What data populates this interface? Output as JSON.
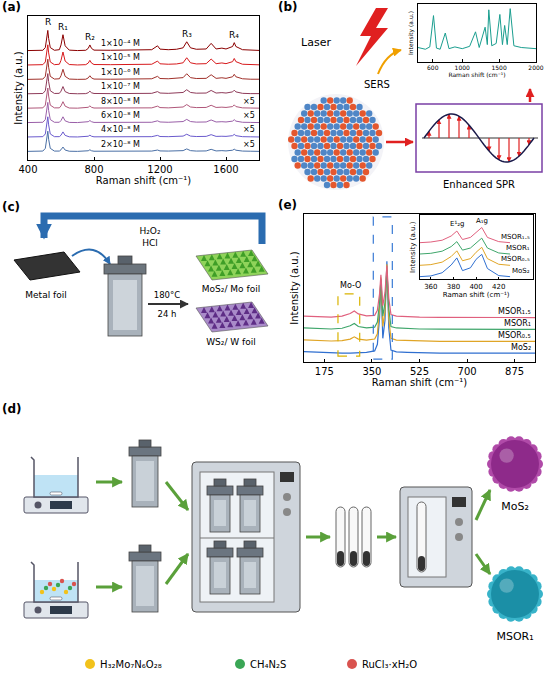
{
  "chart_data": [
    {
      "panel": "(a)",
      "type": "line",
      "grid": false,
      "tick_labels": "x",
      "x_label": "Raman shift (cm⁻¹)",
      "y_label": "Intensity (a.u.)",
      "xlim": [
        400,
        1800
      ],
      "xticks": [
        400,
        800,
        1200,
        1600
      ],
      "ylim": [
        0,
        10
      ],
      "yticks": [],
      "x": [
        400,
        450,
        490,
        505,
        515,
        520,
        525,
        535,
        560,
        590,
        600,
        612,
        625,
        650,
        700,
        750,
        765,
        775,
        785,
        800,
        900,
        1000,
        1100,
        1150,
        1185,
        1200,
        1250,
        1300,
        1340,
        1362,
        1385,
        1420,
        1480,
        1510,
        1540,
        1575,
        1600,
        1640,
        1650,
        1660,
        1700,
        1750,
        1800
      ],
      "peak_labels": [
        {
          "text": "R",
          "x": 520
        },
        {
          "text": "R₁",
          "x": 612
        },
        {
          "text": "R₂",
          "x": 775
        },
        {
          "text": "R₃",
          "x": 1362
        },
        {
          "text": "R₄",
          "x": 1650
        }
      ],
      "series": [
        {
          "name": "1×10⁻⁴ M",
          "color": "#8b0000",
          "values": [
            7.6,
            7.6,
            7.62,
            7.81,
            8.44,
            9.0,
            8.44,
            7.81,
            7.62,
            7.66,
            7.99,
            8.7,
            7.93,
            7.63,
            7.6,
            7.62,
            7.75,
            7.99,
            7.75,
            7.63,
            7.62,
            7.62,
            7.63,
            7.66,
            7.93,
            7.7,
            7.66,
            7.69,
            7.79,
            8.21,
            7.79,
            7.69,
            7.71,
            8.1,
            7.71,
            7.77,
            7.71,
            7.88,
            8.15,
            7.88,
            7.66,
            7.62,
            7.61
          ]
        },
        {
          "name": "1×10⁻⁵ M",
          "color": "#d7191c",
          "values": [
            6.6,
            6.6,
            6.62,
            6.81,
            7.44,
            8.0,
            7.44,
            6.81,
            6.62,
            6.65,
            6.92,
            7.5,
            6.87,
            6.63,
            6.6,
            6.62,
            6.73,
            6.92,
            6.73,
            6.63,
            6.62,
            6.62,
            6.63,
            6.65,
            6.87,
            6.68,
            6.65,
            6.67,
            6.75,
            7.1,
            6.75,
            6.67,
            6.69,
            7.01,
            6.69,
            6.74,
            6.69,
            6.83,
            7.05,
            6.83,
            6.65,
            6.62,
            6.61
          ]
        },
        {
          "name": "1×10⁻⁶ M",
          "color": "#a0302a",
          "values": [
            5.6,
            5.6,
            5.62,
            5.81,
            6.44,
            7.0,
            6.44,
            5.81,
            5.62,
            5.64,
            5.85,
            6.3,
            5.81,
            5.62,
            5.6,
            5.61,
            5.7,
            5.85,
            5.7,
            5.62,
            5.61,
            5.61,
            5.62,
            5.64,
            5.81,
            5.66,
            5.64,
            5.66,
            5.72,
            5.99,
            5.72,
            5.66,
            5.67,
            5.92,
            5.67,
            5.71,
            5.67,
            5.78,
            5.95,
            5.78,
            5.64,
            5.61,
            5.61
          ]
        },
        {
          "name": "1×10⁻⁷ M",
          "color": "#8e3a59",
          "values": [
            4.6,
            4.6,
            4.62,
            4.81,
            5.44,
            6.0,
            5.44,
            4.81,
            4.62,
            4.63,
            4.78,
            5.1,
            4.75,
            4.62,
            4.6,
            4.61,
            4.67,
            4.78,
            4.67,
            4.62,
            4.61,
            4.61,
            4.62,
            4.63,
            4.75,
            4.65,
            4.63,
            4.64,
            4.69,
            4.88,
            4.69,
            4.64,
            4.65,
            4.83,
            4.65,
            4.68,
            4.65,
            4.73,
            4.85,
            4.73,
            4.63,
            4.61,
            4.61
          ]
        },
        {
          "name": "8×10⁻⁸ M",
          "color": "#b0577a",
          "annotation": "×5",
          "values": [
            3.6,
            3.6,
            3.62,
            3.81,
            4.44,
            5.0,
            4.44,
            3.81,
            3.62,
            3.62,
            3.76,
            4.05,
            3.74,
            3.61,
            3.6,
            3.61,
            3.66,
            3.76,
            3.66,
            3.61,
            3.61,
            3.61,
            3.61,
            3.62,
            3.74,
            3.64,
            3.62,
            3.64,
            3.68,
            3.85,
            3.68,
            3.64,
            3.65,
            3.8,
            3.65,
            3.67,
            3.65,
            3.71,
            3.83,
            3.71,
            3.62,
            3.61,
            3.6
          ]
        },
        {
          "name": "6×10⁻⁸ M",
          "color": "#9a5fa8",
          "annotation": "×5",
          "values": [
            2.6,
            2.6,
            2.62,
            2.81,
            3.44,
            4.0,
            3.44,
            2.81,
            2.62,
            2.62,
            2.74,
            3.0,
            2.72,
            2.61,
            2.6,
            2.61,
            2.66,
            2.74,
            2.66,
            2.61,
            2.61,
            2.61,
            2.61,
            2.62,
            2.72,
            2.64,
            2.62,
            2.63,
            2.67,
            2.82,
            2.67,
            2.63,
            2.64,
            2.78,
            2.64,
            2.66,
            2.64,
            2.7,
            2.8,
            2.7,
            2.62,
            2.61,
            2.6
          ]
        },
        {
          "name": "4×10⁻⁸ M",
          "color": "#6a5acd",
          "annotation": "×5",
          "values": [
            1.6,
            1.6,
            1.62,
            1.81,
            2.44,
            3.0,
            2.44,
            1.81,
            1.62,
            1.62,
            1.72,
            1.95,
            1.71,
            1.61,
            1.6,
            1.61,
            1.65,
            1.72,
            1.65,
            1.61,
            1.61,
            1.61,
            1.61,
            1.62,
            1.71,
            1.63,
            1.62,
            1.63,
            1.66,
            1.79,
            1.66,
            1.63,
            1.64,
            1.76,
            1.64,
            1.65,
            1.64,
            1.69,
            1.78,
            1.69,
            1.62,
            1.61,
            1.6
          ]
        },
        {
          "name": "2×10⁻⁸ M",
          "color": "#4a6fa5",
          "annotation": "×5",
          "values": [
            0.6,
            0.6,
            0.62,
            0.81,
            1.44,
            2.0,
            1.44,
            0.81,
            0.62,
            0.62,
            0.71,
            0.9,
            0.69,
            0.61,
            0.6,
            0.61,
            0.64,
            0.71,
            0.64,
            0.61,
            0.61,
            0.61,
            0.61,
            0.62,
            0.69,
            0.63,
            0.62,
            0.62,
            0.65,
            0.77,
            0.65,
            0.62,
            0.63,
            0.74,
            0.63,
            0.65,
            0.63,
            0.68,
            0.75,
            0.68,
            0.62,
            0.61,
            0.6
          ]
        }
      ]
    },
    {
      "type": "line",
      "grid": false,
      "tick_labels": "x",
      "color": "#1a9e8f",
      "x_label": "Raman shift (cm⁻¹)",
      "y_label": "Intensity (a.u.)",
      "xlim": [
        400,
        2000
      ],
      "xticks": [
        600,
        1000,
        1500,
        2000
      ],
      "ylim": [
        0,
        10
      ],
      "yticks": [],
      "x": [
        400,
        500,
        560,
        610,
        650,
        700,
        770,
        820,
        900,
        1000,
        1100,
        1180,
        1230,
        1310,
        1340,
        1360,
        1400,
        1460,
        1510,
        1545,
        1575,
        1610,
        1650,
        1700,
        1800,
        1900,
        2000
      ],
      "values": [
        2.5,
        2.2,
        2.6,
        8.0,
        2.4,
        2.2,
        5.0,
        2.3,
        2.6,
        2.3,
        2.7,
        5.2,
        2.5,
        6.0,
        3.0,
        9.0,
        2.8,
        3.2,
        8.2,
        3.0,
        6.3,
        3.0,
        9.2,
        2.8,
        2.5,
        2.4,
        2.3
      ]
    },
    {
      "panel": "(e)",
      "type": "line",
      "grid": false,
      "tick_labels": "x",
      "x_label": "Raman shift (cm⁻¹)",
      "y_label": "Intensity (a.u.)",
      "xlim": [
        100,
        950
      ],
      "xticks": [
        175,
        350,
        525,
        700,
        875
      ],
      "ylim": [
        0,
        10
      ],
      "yticks": [],
      "x": [
        100,
        150,
        200,
        240,
        270,
        285,
        300,
        330,
        360,
        370,
        378,
        383,
        390,
        398,
        405,
        412,
        420,
        440,
        480,
        525,
        600,
        700,
        800,
        875,
        950
      ],
      "regions": [
        {
          "label": "Mo-O",
          "x": [
            225,
            305
          ],
          "color": "#d9b300"
        },
        {
          "x": [
            355,
            425
          ],
          "color": "#3a7bd5"
        }
      ],
      "series": [
        {
          "name": "MoS₂",
          "color": "#2f6fd0",
          "values": [
            0.7,
            0.65,
            0.62,
            0.6,
            0.6,
            0.62,
            0.62,
            0.65,
            0.75,
            1.2,
            3.0,
            5.4,
            1.6,
            2.8,
            6.8,
            2.3,
            0.8,
            0.68,
            0.65,
            0.62,
            0.6,
            0.6,
            0.6,
            0.6,
            0.6
          ]
        },
        {
          "name": "MSOR₀.₅",
          "color": "#e0a526",
          "values": [
            1.5,
            1.45,
            1.42,
            1.45,
            1.55,
            1.7,
            1.55,
            1.48,
            1.55,
            1.9,
            3.6,
            5.7,
            2.4,
            3.4,
            6.6,
            2.9,
            1.6,
            1.48,
            1.45,
            1.42,
            1.4,
            1.4,
            1.4,
            1.4,
            1.4
          ]
        },
        {
          "name": "MSOR₁",
          "color": "#3fa66b",
          "values": [
            2.3,
            2.25,
            2.23,
            2.28,
            2.45,
            2.6,
            2.4,
            2.3,
            2.35,
            2.7,
            4.0,
            5.6,
            3.1,
            4.0,
            6.2,
            3.6,
            2.4,
            2.3,
            2.26,
            2.23,
            2.22,
            2.2,
            2.2,
            2.2,
            2.2
          ]
        },
        {
          "name": "MSOR₁.₅",
          "color": "#e0607e",
          "values": [
            3.1,
            3.05,
            3.03,
            3.1,
            3.28,
            3.45,
            3.25,
            3.12,
            3.15,
            3.5,
            4.6,
            5.9,
            3.8,
            4.7,
            6.5,
            4.3,
            3.2,
            3.1,
            3.06,
            3.03,
            3.02,
            3.0,
            3.0,
            3.0,
            3.0
          ]
        }
      ],
      "inset": {
        "type": "line",
        "tick_labels": "x",
        "x_label": "Raman shift (cm⁻¹)",
        "y_label": "Intensity (a.u.)",
        "xlim": [
          350,
          450
        ],
        "xticks": [
          360,
          380,
          400,
          420
        ],
        "ylim": [
          0,
          9
        ],
        "yticks": [],
        "x": [
          350,
          360,
          370,
          378,
          383,
          388,
          395,
          400,
          405,
          410,
          420,
          430
        ],
        "peak_labels": [
          {
            "text": "E¹₂g",
            "x": 383
          },
          {
            "text": "A₁g",
            "x": 405
          }
        ],
        "series": [
          {
            "name": "MoS₂",
            "color": "#2f6fd0",
            "values": [
              0.35,
              0.45,
              0.9,
              2.0,
              3.0,
              1.2,
              1.6,
              2.8,
              3.5,
              1.5,
              0.5,
              0.35
            ]
          },
          {
            "name": "MSOR₀.₅",
            "color": "#e0a526",
            "values": [
              1.95,
              2.05,
              2.4,
              3.2,
              4.0,
              2.6,
              2.9,
              3.8,
              4.5,
              2.9,
              2.1,
              1.95
            ]
          },
          {
            "name": "MSOR₁",
            "color": "#3fa66b",
            "values": [
              3.55,
              3.65,
              3.95,
              4.6,
              5.3,
              4.1,
              4.4,
              5.1,
              5.8,
              4.4,
              3.7,
              3.55
            ]
          },
          {
            "name": "MSOR₁.₅",
            "color": "#e0607e",
            "values": [
              5.15,
              5.25,
              5.5,
              6.1,
              6.8,
              5.6,
              5.9,
              6.6,
              7.3,
              5.9,
              5.3,
              5.15
            ]
          }
        ]
      }
    }
  ],
  "diagrams": {
    "b": {
      "panel": "(b)",
      "laser": "Laser",
      "sers": "SERS",
      "spr": "Enhanced SPR"
    },
    "c": {
      "panel": "(c)",
      "reagents": [
        "H₂O₂",
        "HCl"
      ],
      "start": "Metal foil",
      "conditions": [
        "180°C",
        "24 h"
      ],
      "products": [
        "MoS₂/ Mo foil",
        "WS₂/ W foil"
      ]
    },
    "d": {
      "panel": "(d)",
      "products": [
        "MoS₂",
        "MSOR₁"
      ],
      "reagents": [
        {
          "label": "H₃₂Mo₇N₆O₂₈",
          "color": "#f2c21b"
        },
        {
          "label": "CH₄N₂S",
          "color": "#3aa655"
        },
        {
          "label": "RuCl₃·xH₂O",
          "color": "#d9534f"
        }
      ]
    }
  }
}
